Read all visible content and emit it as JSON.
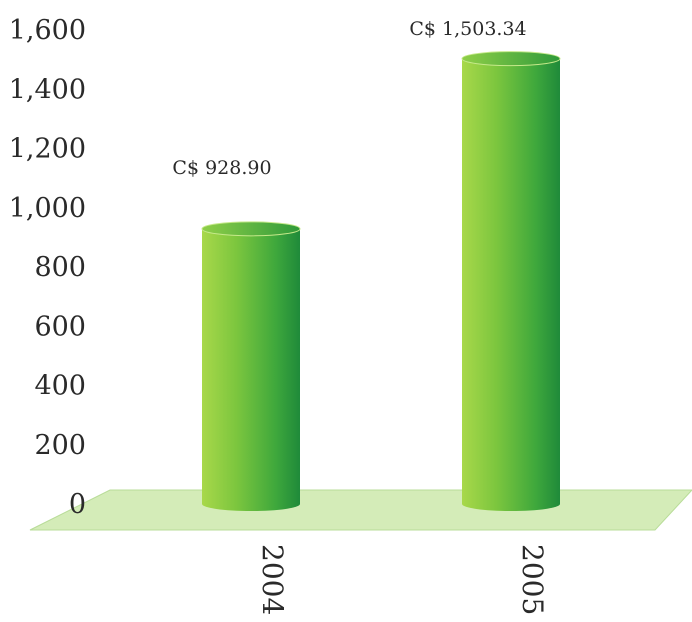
{
  "chart_data": {
    "type": "bar",
    "categories": [
      "2004",
      "2005"
    ],
    "values": [
      928.9,
      1503.34
    ],
    "data_labels": [
      "C$ 928.90",
      "C$ 1,503.34"
    ],
    "yticks": [
      "0",
      "200",
      "400",
      "600",
      "800",
      "1,000",
      "1,200",
      "1,400",
      "1,600"
    ],
    "ytick_values": [
      0,
      200,
      400,
      600,
      800,
      1000,
      1200,
      1400,
      1600
    ],
    "ylim": [
      0,
      1600
    ],
    "title": "",
    "xlabel": "",
    "ylabel": "",
    "grid": false,
    "legend": "none",
    "colors": {
      "bar_dark": "#1f8a3a",
      "bar_light": "#a8d84a",
      "floor": "#d4ecb8"
    }
  }
}
